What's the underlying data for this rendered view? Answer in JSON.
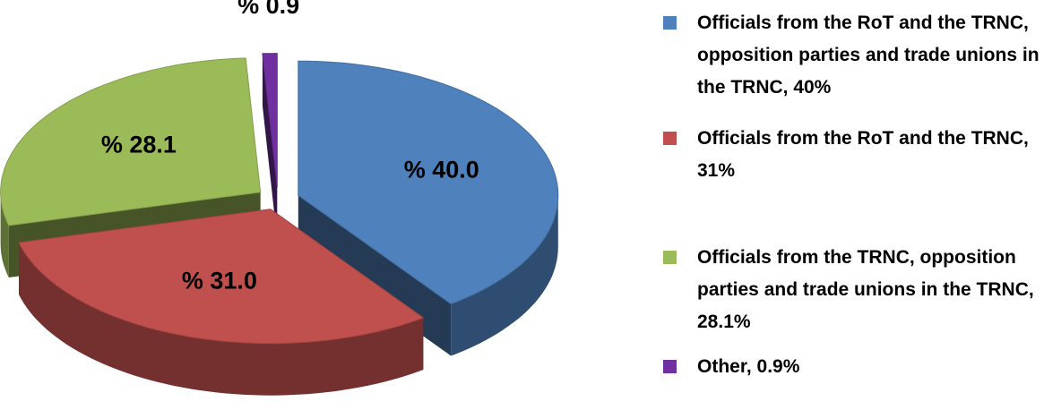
{
  "chart_data": {
    "type": "pie",
    "categories": [
      "Officials from the RoT and the TRNC, opposition parties and trade unions in the TRNC, 40%",
      "Officials from the RoT and the TRNC, 31%",
      "Officials from the TRNC, opposition parties and trade unions in the TRNC, 28.1%",
      "Other, 0.9%"
    ],
    "values": [
      40.0,
      31.0,
      28.1,
      0.9
    ],
    "value_labels": [
      "% 40.0",
      "% 31.0",
      "% 28.1",
      "% 0.9"
    ],
    "colors": [
      "#4f81bd",
      "#c0504d",
      "#9bbb59",
      "#7030a0"
    ],
    "legend": "right"
  }
}
